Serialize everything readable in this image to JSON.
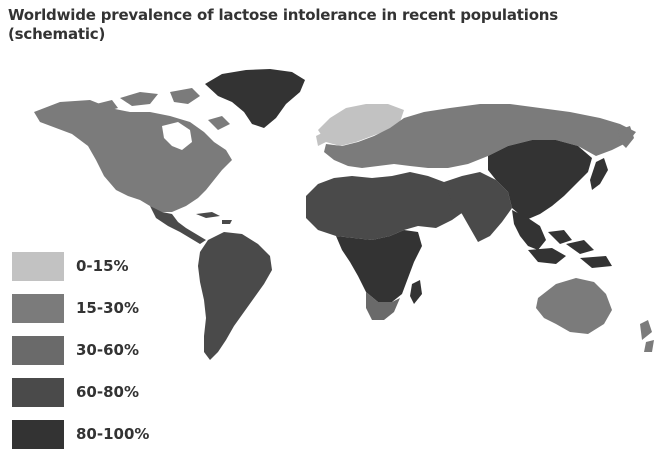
{
  "title": {
    "line1": "Worldwide prevalence of lactose intolerance in recent populations",
    "line2": "(schematic)"
  },
  "legend": [
    {
      "label": "0-15%",
      "color": "#c2c2c2"
    },
    {
      "label": "15-30%",
      "color": "#7b7b7b"
    },
    {
      "label": "30-60%",
      "color": "#6a6a6a"
    },
    {
      "label": "60-80%",
      "color": "#4a4a4a"
    },
    {
      "label": "80-100%",
      "color": "#333333"
    }
  ],
  "regions": [
    {
      "name": "North America",
      "category": "15-30%"
    },
    {
      "name": "Greenland",
      "category": "80-100%"
    },
    {
      "name": "Central America",
      "category": "60-80%"
    },
    {
      "name": "South America",
      "category": "60-80%"
    },
    {
      "name": "Northern Europe",
      "category": "0-15%"
    },
    {
      "name": "Europe and Northern Asia",
      "category": "15-30%"
    },
    {
      "name": "North Africa and Middle East",
      "category": "60-80%"
    },
    {
      "name": "Sub-Saharan Africa",
      "category": "80-100%"
    },
    {
      "name": "Southern Africa",
      "category": "30-60%"
    },
    {
      "name": "South Asia",
      "category": "60-80%"
    },
    {
      "name": "East Asia",
      "category": "80-100%"
    },
    {
      "name": "Southeast Asia",
      "category": "80-100%"
    },
    {
      "name": "Australia",
      "category": "15-30%"
    }
  ]
}
